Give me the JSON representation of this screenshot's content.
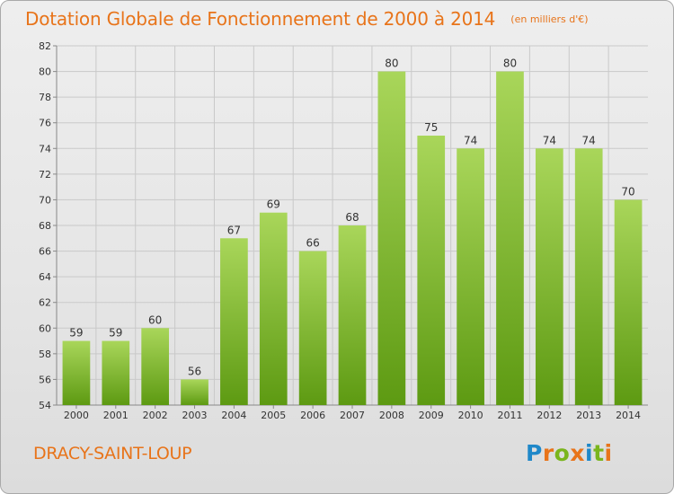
{
  "title": "Dotation Globale de Fonctionnement de 2000 à 2014",
  "subtitle": "(en milliers d'€)",
  "commune": "DRACY-SAINT-LOUP",
  "brand": {
    "letters": [
      "P",
      "r",
      "o",
      "x",
      "i",
      "t",
      "i"
    ],
    "colors": [
      "#1f88c9",
      "#e8741a",
      "#7ab51d",
      "#e8741a",
      "#1f88c9",
      "#7ab51d",
      "#e8741a"
    ]
  },
  "colors": {
    "title": "#e8741a",
    "bar_top": "#a9d65a",
    "bar_bottom": "#5d9a12",
    "grid": "#c9c9c9"
  },
  "chart_data": {
    "type": "bar",
    "title": "Dotation Globale de Fonctionnement de 2000 à 2014",
    "subtitle": "(en milliers d'€)",
    "categories": [
      "2000",
      "2001",
      "2002",
      "2003",
      "2004",
      "2005",
      "2006",
      "2007",
      "2008",
      "2009",
      "2010",
      "2011",
      "2012",
      "2013",
      "2014"
    ],
    "values": [
      59,
      59,
      60,
      56,
      67,
      69,
      66,
      68,
      80,
      75,
      74,
      80,
      74,
      74,
      70
    ],
    "ylim": [
      54,
      82
    ],
    "yticks": [
      54,
      56,
      58,
      60,
      62,
      64,
      66,
      68,
      70,
      72,
      74,
      76,
      78,
      80,
      82
    ],
    "grid": true,
    "data_labels": true
  }
}
